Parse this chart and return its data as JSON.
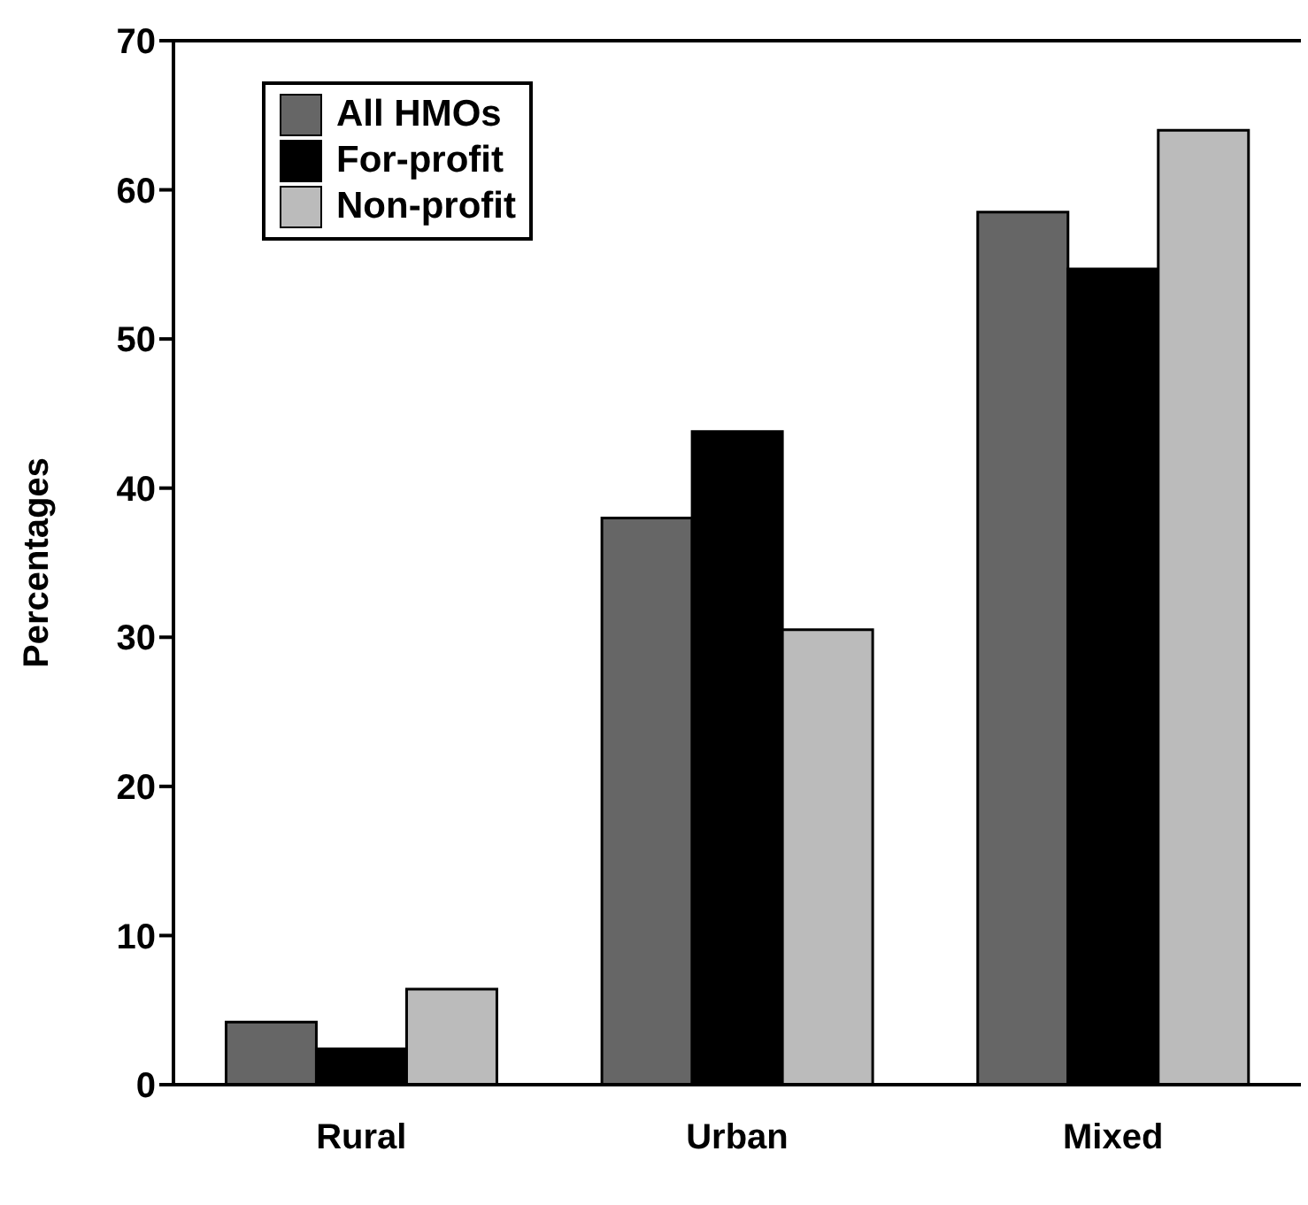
{
  "chart_data": {
    "type": "bar",
    "ylabel": "Percentages",
    "categories": [
      "Rural",
      "Urban",
      "Mixed"
    ],
    "series": [
      {
        "name": "All HMOs",
        "color": "#666666",
        "values": [
          4.2,
          38,
          58.5
        ]
      },
      {
        "name": "For-profit",
        "color": "#000000",
        "values": [
          2.4,
          43.8,
          54.7
        ]
      },
      {
        "name": "Non-profit",
        "color": "#bbbbbb",
        "values": [
          6.4,
          30.5,
          64
        ]
      }
    ],
    "ylim": [
      0,
      70
    ],
    "yticks": [
      0,
      10,
      20,
      30,
      40,
      50,
      60,
      70
    ],
    "legend": "top left",
    "grid": false
  }
}
